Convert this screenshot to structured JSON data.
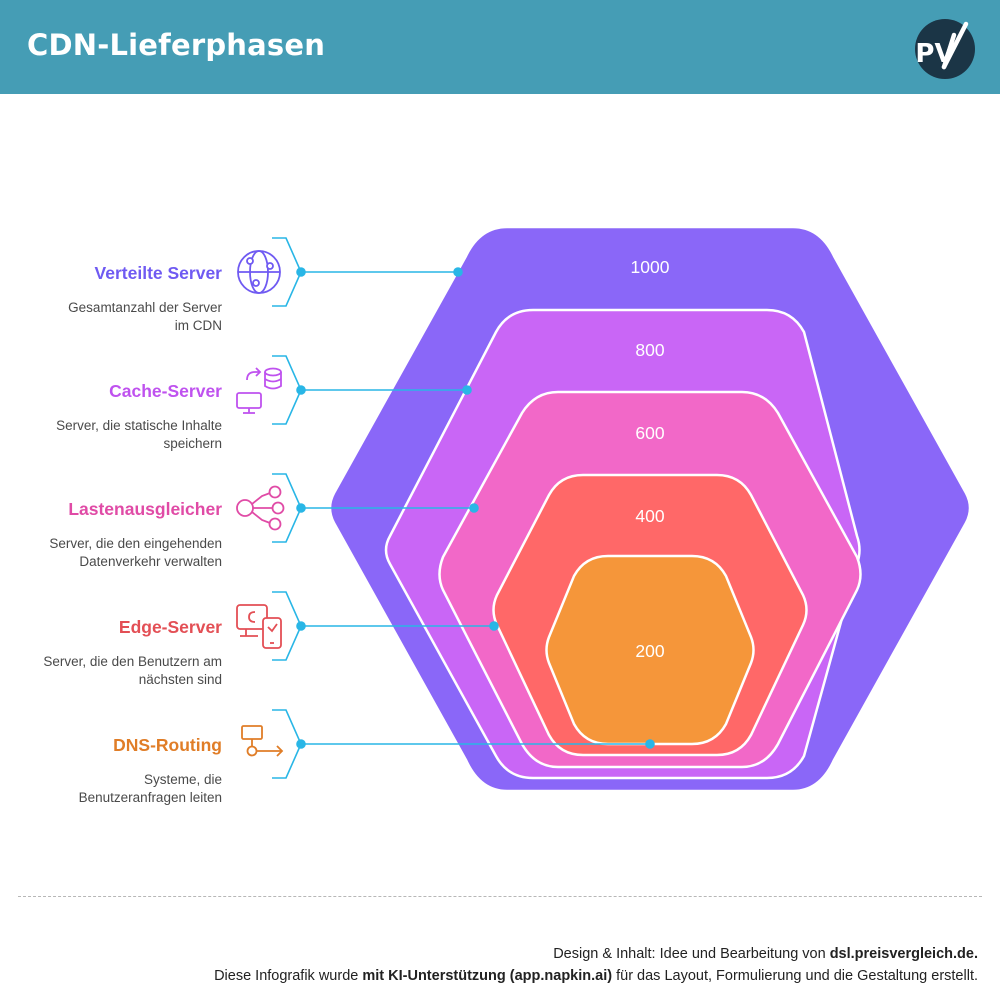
{
  "header": {
    "title": "CDN-Lieferphasen",
    "logo_text": "PV"
  },
  "stages": [
    {
      "id": "verteilte-server",
      "title": "Verteilte Server",
      "description": "Gesamtanzahl der Server im CDN",
      "value": "1000",
      "icon": "globe-network-icon",
      "color": "#6f5af2",
      "layer_color": "#8a67f8"
    },
    {
      "id": "cache-server",
      "title": "Cache-Server",
      "description": "Server, die statische Inhalte speichern",
      "value": "800",
      "icon": "database-sync-icon",
      "color": "#bf52ef",
      "layer_color": "#c966f6"
    },
    {
      "id": "lastenausgleicher",
      "title": "Lastenausgleicher",
      "description": "Server, die den eingehenden Datenverkehr verwalten",
      "value": "600",
      "icon": "share-nodes-icon",
      "color": "#e04ba6",
      "layer_color": "#f268c8"
    },
    {
      "id": "edge-server",
      "title": "Edge-Server",
      "description": "Server, die den Benutzern am nächsten sind",
      "value": "400",
      "icon": "edge-devices-icon",
      "color": "#e34f55",
      "layer_color": "#ff6868"
    },
    {
      "id": "dns-routing",
      "title": "DNS-Routing",
      "description": "Systeme, die Benutzeranfragen leiten",
      "value": "200",
      "icon": "routing-flow-icon",
      "color": "#e07d27",
      "layer_color": "#f5963a"
    }
  ],
  "connector_color": "#29b6e6",
  "footer": {
    "line1_prefix": "Design & Inhalt: Idee und Bearbeitung von ",
    "line1_bold": "dsl.preisvergleich.de.",
    "line2_prefix": "Diese Infografik wurde ",
    "line2_bold": "mit KI-Unterstützung (app.napkin.ai)",
    "line2_suffix": " für das Layout, Formulierung und die Gestaltung erstellt."
  }
}
